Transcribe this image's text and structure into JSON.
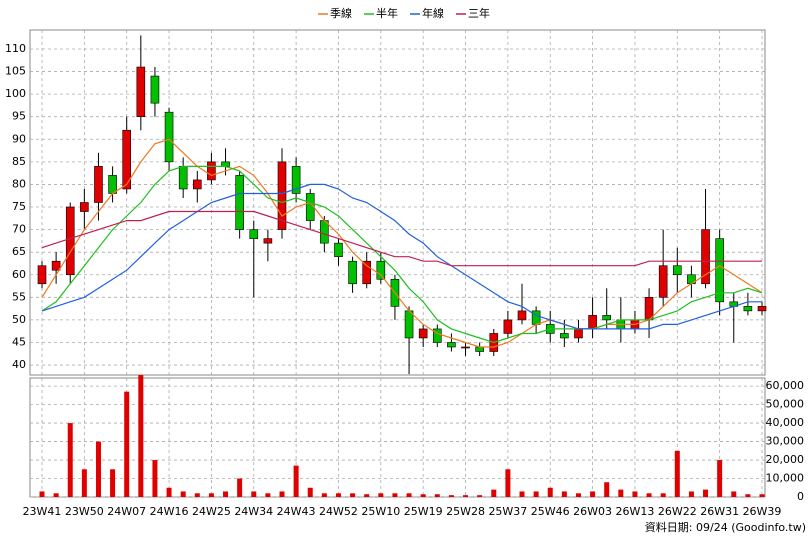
{
  "chart_data": {
    "type": "candlestick",
    "categories": [
      "23W41",
      null,
      null,
      "23W50",
      null,
      null,
      "24W07",
      null,
      null,
      "24W16",
      null,
      null,
      "24W25",
      null,
      null,
      "24W34",
      null,
      null,
      "24W43",
      null,
      null,
      "24W52",
      null,
      null,
      "25W10",
      null,
      null,
      "25W19",
      null,
      null,
      "25W28",
      null,
      null,
      "25W37",
      null,
      null,
      "25W46",
      null,
      null,
      "26W03",
      null,
      null,
      "26W13",
      null,
      null,
      "26W22",
      null,
      null,
      "26W31",
      null,
      null,
      "26W39"
    ],
    "open": [
      58,
      61,
      60,
      74,
      76,
      82,
      79,
      95,
      104,
      96,
      84,
      79,
      81,
      85,
      82,
      70,
      67,
      70,
      84,
      78,
      72,
      67,
      63,
      58,
      63,
      59,
      52,
      46,
      48,
      45,
      44,
      44,
      43,
      47,
      50,
      52,
      49,
      47,
      46,
      48,
      51,
      50,
      48,
      50,
      55,
      62,
      60,
      58,
      68,
      54,
      53,
      52
    ],
    "high": [
      63,
      65,
      76,
      79,
      87,
      84,
      95,
      113,
      106,
      97,
      86,
      83,
      87,
      88,
      83,
      72,
      70,
      88,
      86,
      79,
      73,
      68,
      64,
      65,
      65,
      60,
      53,
      49,
      49,
      47,
      45,
      45,
      48,
      52,
      58,
      53,
      52,
      50,
      50,
      55,
      57,
      55,
      52,
      57,
      70,
      66,
      62,
      79,
      70,
      56,
      56,
      54
    ],
    "low": [
      57,
      58,
      58,
      70,
      72,
      76,
      78,
      92,
      95,
      83,
      77,
      76,
      80,
      82,
      68,
      55,
      63,
      68,
      76,
      70,
      65,
      62,
      56,
      57,
      58,
      50,
      38,
      44,
      44,
      43,
      42,
      42,
      42,
      46,
      49,
      47,
      45,
      44,
      45,
      46,
      48,
      45,
      47,
      46,
      53,
      56,
      55,
      57,
      51,
      45,
      51,
      51
    ],
    "close": [
      62,
      63,
      75,
      76,
      84,
      78,
      92,
      106,
      98,
      85,
      79,
      81,
      85,
      84,
      70,
      68,
      68,
      85,
      78,
      72,
      67,
      64,
      58,
      63,
      59,
      53,
      46,
      48,
      45,
      44,
      44,
      43,
      47,
      50,
      52,
      49,
      47,
      46,
      48,
      51,
      50,
      48,
      50,
      55,
      62,
      60,
      58,
      70,
      54,
      53,
      52,
      53
    ],
    "up_color": "#e00000",
    "down_color": "#00c000",
    "series": [
      {
        "name": "季線",
        "color": "#f07820",
        "values": [
          55,
          60,
          65,
          70,
          74,
          78,
          80,
          85,
          89,
          90,
          87,
          84,
          82,
          83,
          84,
          82,
          78,
          73,
          75,
          76,
          72,
          69,
          65,
          62,
          60,
          56,
          52,
          49,
          47,
          46,
          45,
          44,
          44,
          45,
          47,
          49,
          50,
          49,
          48,
          48,
          49,
          49,
          49,
          50,
          53,
          56,
          58,
          60,
          62,
          60,
          58,
          56
        ]
      },
      {
        "name": "半年",
        "color": "#20c020",
        "values": [
          52,
          54,
          58,
          62,
          66,
          70,
          73,
          76,
          80,
          83,
          84,
          84,
          84,
          84,
          83,
          80,
          77,
          76,
          77,
          76,
          75,
          73,
          70,
          67,
          64,
          61,
          57,
          54,
          50,
          48,
          47,
          46,
          45,
          46,
          47,
          47,
          48,
          48,
          48,
          48,
          49,
          50,
          50,
          50,
          51,
          52,
          54,
          55,
          56,
          56,
          57,
          56
        ]
      },
      {
        "name": "年線",
        "color": "#2060e0",
        "values": [
          52,
          53,
          54,
          55,
          57,
          59,
          61,
          64,
          67,
          70,
          72,
          74,
          76,
          77,
          78,
          78,
          78,
          78,
          79,
          80,
          80,
          79,
          77,
          76,
          74,
          72,
          69,
          67,
          64,
          62,
          60,
          58,
          56,
          54,
          53,
          51,
          50,
          49,
          48,
          48,
          48,
          48,
          48,
          48,
          49,
          49,
          50,
          51,
          52,
          53,
          54,
          54
        ]
      },
      {
        "name": "三年",
        "color": "#c02050",
        "values": [
          66,
          67,
          68,
          69,
          70,
          71,
          72,
          72,
          73,
          74,
          74,
          74,
          74,
          74,
          74,
          74,
          73,
          72,
          71,
          70,
          69,
          68,
          67,
          66,
          65,
          64,
          64,
          63,
          63,
          62,
          62,
          62,
          62,
          62,
          62,
          62,
          62,
          62,
          62,
          62,
          62,
          62,
          62,
          63,
          63,
          63,
          63,
          63,
          63,
          63,
          63,
          63
        ]
      }
    ],
    "volume": [
      3000,
      2000,
      40000,
      15000,
      30000,
      15000,
      57000,
      66000,
      20000,
      5000,
      3000,
      2000,
      2000,
      3000,
      10000,
      3000,
      2000,
      3000,
      17000,
      5000,
      2000,
      2000,
      2000,
      1500,
      2000,
      2000,
      2000,
      1500,
      1500,
      1000,
      1000,
      1000,
      4000,
      15000,
      3000,
      3000,
      5000,
      3000,
      2000,
      3000,
      8000,
      4000,
      3000,
      2000,
      2000,
      25000,
      3000,
      4000,
      20000,
      3000,
      1500,
      1500
    ],
    "volume_color": "#e00000",
    "ylim": [
      37.8,
      114.2
    ],
    "yticks": [
      40,
      45,
      50,
      55,
      60,
      65,
      70,
      75,
      80,
      85,
      90,
      95,
      100,
      105,
      110
    ],
    "volume_ylim": [
      0,
      64400
    ],
    "volume_yticks": [
      0,
      {
        "value": 10000,
        "label": "10,000"
      },
      {
        "value": 20000,
        "label": "20,000"
      },
      {
        "value": 30000,
        "label": "30,000"
      },
      {
        "value": 40000,
        "label": "40,000"
      },
      {
        "value": 50000,
        "label": "50,000"
      },
      {
        "value": 60000,
        "label": "60,000"
      }
    ],
    "grid": true,
    "annotation": "資料日期: 09/24 (Goodinfo.tw)"
  }
}
